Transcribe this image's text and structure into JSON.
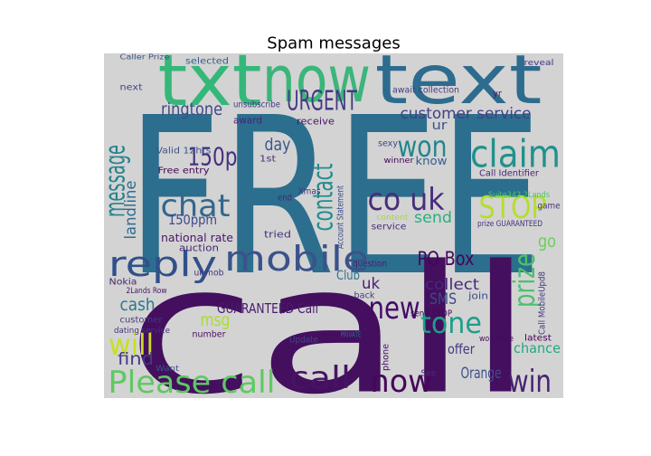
{
  "chart_data": {
    "type": "wordcloud",
    "title": "Spam messages",
    "background": "#d3d3d3",
    "words": [
      {
        "text": "FREE",
        "color": "#2c6e8e"
      },
      {
        "text": "call",
        "color": "#440f5e"
      },
      {
        "text": "now",
        "color": "#3bb57a"
      },
      {
        "text": "txt",
        "color": "#35b779"
      },
      {
        "text": "text",
        "color": "#2d6c8e"
      },
      {
        "text": "URGENT",
        "color": "#443983"
      },
      {
        "text": "mobile",
        "color": "#3b528b"
      },
      {
        "text": "Please call",
        "color": "#5ec962"
      },
      {
        "text": "reply",
        "color": "#31508b"
      },
      {
        "text": "chat",
        "color": "#31688e"
      },
      {
        "text": "150p",
        "color": "#46307e"
      },
      {
        "text": "message",
        "color": "#26828e"
      },
      {
        "text": "ringtone",
        "color": "#3e4a89"
      },
      {
        "text": "claim",
        "color": "#21918c"
      },
      {
        "text": "won",
        "color": "#24868e"
      },
      {
        "text": "co uk",
        "color": "#472d7b"
      },
      {
        "text": "STOP",
        "color": "#b5de2b"
      },
      {
        "text": "customer service",
        "color": "#433e85"
      },
      {
        "text": "new",
        "color": "#440a68"
      },
      {
        "text": "tone",
        "color": "#1f9e89"
      },
      {
        "text": "now",
        "color": "#46075a"
      },
      {
        "text": "win",
        "color": "#482173"
      },
      {
        "text": "prize",
        "color": "#4ac16d"
      },
      {
        "text": "will",
        "color": "#c8e020"
      },
      {
        "text": "call",
        "color": "#471365"
      },
      {
        "text": "contact",
        "color": "#228c8d"
      },
      {
        "text": "PO Box",
        "color": "#450559"
      },
      {
        "text": "collect",
        "color": "#472a7a"
      },
      {
        "text": "SMS",
        "color": "#3e4989"
      },
      {
        "text": "GUARANTEED Call",
        "color": "#481a6c"
      },
      {
        "text": "cash",
        "color": "#2a788e"
      },
      {
        "text": "find",
        "color": "#443b84"
      },
      {
        "text": "msg",
        "color": "#addc30"
      },
      {
        "text": "day",
        "color": "#38588c"
      },
      {
        "text": "send",
        "color": "#29af7f"
      },
      {
        "text": "go",
        "color": "#6ccd5a"
      },
      {
        "text": "Orange",
        "color": "#3d4e8a"
      },
      {
        "text": "offer",
        "color": "#453781"
      },
      {
        "text": "uk",
        "color": "#481f70"
      },
      {
        "text": "chance",
        "color": "#22a884"
      },
      {
        "text": "landline",
        "color": "#2f6b8e"
      },
      {
        "text": "150ppm",
        "color": "#3f4788"
      },
      {
        "text": "national rate",
        "color": "#481769"
      },
      {
        "text": "Free entry",
        "color": "#440154"
      },
      {
        "text": "Valid 12hrs",
        "color": "#3b528b"
      },
      {
        "text": "award",
        "color": "#482475"
      },
      {
        "text": "next",
        "color": "#414487"
      },
      {
        "text": "selected",
        "color": "#355f8d"
      },
      {
        "text": "unsubscribe",
        "color": "#453882"
      },
      {
        "text": "tried",
        "color": "#46327e"
      },
      {
        "text": "auction",
        "color": "#482878"
      },
      {
        "text": "Nokia",
        "color": "#482374"
      },
      {
        "text": "customer",
        "color": "#443a83"
      },
      {
        "text": "dating service",
        "color": "#46337f"
      },
      {
        "text": "ur mob",
        "color": "#472f7d"
      },
      {
        "text": "Club",
        "color": "#2c728e"
      },
      {
        "text": "question",
        "color": "#481b6d"
      },
      {
        "text": "back",
        "color": "#433d84"
      },
      {
        "text": "receive",
        "color": "#481467"
      },
      {
        "text": "know",
        "color": "#365c8d"
      },
      {
        "text": "ur",
        "color": "#3b528b"
      },
      {
        "text": "Xmas",
        "color": "#46307e"
      },
      {
        "text": "end",
        "color": "#482677"
      },
      {
        "text": "1st",
        "color": "#472c7a"
      },
      {
        "text": "latest",
        "color": "#440154"
      },
      {
        "text": "join",
        "color": "#3e4c8a"
      },
      {
        "text": "See",
        "color": "#482979"
      },
      {
        "text": "Update",
        "color": "#3f4889"
      },
      {
        "text": "number",
        "color": "#471063"
      },
      {
        "text": "Want",
        "color": "#3a548c"
      },
      {
        "text": "service",
        "color": "#472d7b"
      },
      {
        "text": "content",
        "color": "#a2da37"
      },
      {
        "text": "game",
        "color": "#453581"
      },
      {
        "text": "await collection",
        "color": "#443a83"
      },
      {
        "text": "sexy",
        "color": "#3f4788"
      },
      {
        "text": "winner",
        "color": "#450457"
      },
      {
        "text": "Suite342 2Lands",
        "color": "#4ec36b"
      },
      {
        "text": "Call Identifier",
        "color": "#482576"
      },
      {
        "text": "reveal",
        "color": "#46307e"
      },
      {
        "text": "yr",
        "color": "#481c6e"
      },
      {
        "text": "prize GUARANTEED",
        "color": "#472f7d"
      },
      {
        "text": "PRIVATE",
        "color": "#31688e"
      },
      {
        "text": "send STOP",
        "color": "#450559"
      },
      {
        "text": "won prize",
        "color": "#46085c"
      },
      {
        "text": "Call MobileUpd8",
        "color": "#443983"
      },
      {
        "text": "2Lands Row",
        "color": "#481769"
      },
      {
        "text": "Caller Prize",
        "color": "#3b528b"
      },
      {
        "text": "Account Statement",
        "color": "#3e4a89"
      },
      {
        "text": "phone",
        "color": "#471164"
      }
    ]
  }
}
